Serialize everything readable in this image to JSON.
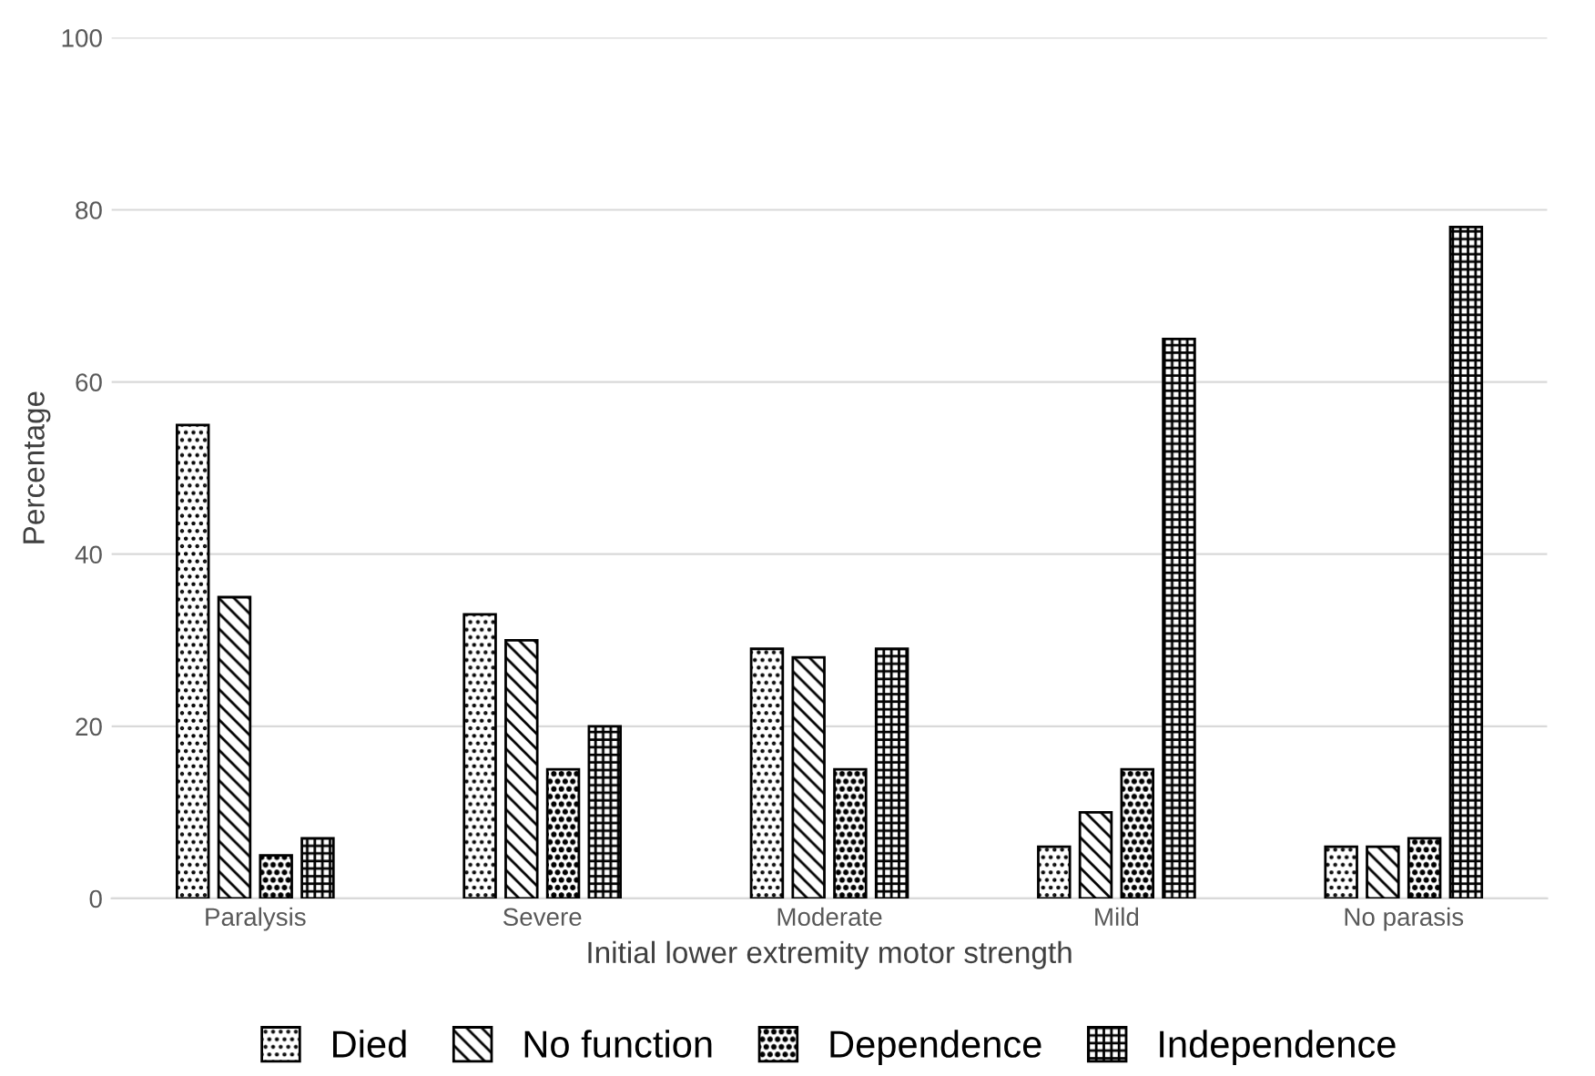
{
  "chart_data": {
    "type": "bar",
    "xlabel": "Initial lower extremity motor strength",
    "ylabel": "Percentage",
    "categories": [
      "Paralysis",
      "Severe",
      "Moderate",
      "Mild",
      "No parasis"
    ],
    "series": [
      {
        "name": "Died",
        "color": "#000000",
        "values": [
          55,
          33,
          29,
          6,
          6
        ]
      },
      {
        "name": "No function",
        "color": "#000000",
        "values": [
          35,
          30,
          28,
          10,
          6
        ]
      },
      {
        "name": "Dependence",
        "color": "#000000",
        "values": [
          5,
          15,
          15,
          15,
          7
        ]
      },
      {
        "name": "Independence",
        "color": "#000000",
        "values": [
          7,
          20,
          29,
          65,
          78
        ]
      }
    ],
    "ylim": [
      0,
      100
    ],
    "yticks": [
      0,
      20,
      40,
      60,
      80,
      100
    ],
    "grid": "y",
    "legend": "bottom"
  }
}
